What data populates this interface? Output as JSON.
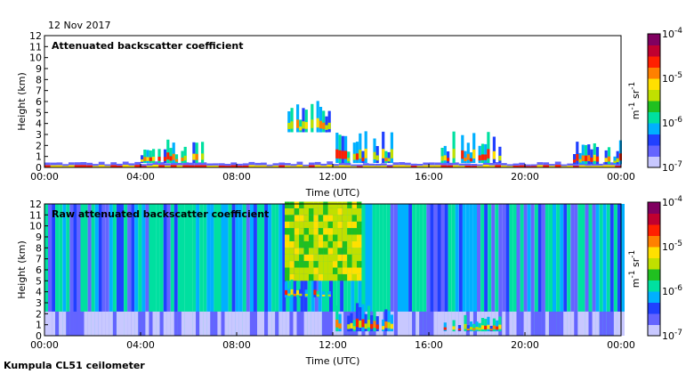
{
  "date": "12 Nov 2017",
  "instrument": "Kumpula CL51 ceilometer",
  "colors": {
    "scale": [
      "#c8c8ff",
      "#6464ff",
      "#2040ff",
      "#00b0ff",
      "#00e0a0",
      "#20c020",
      "#c0e000",
      "#ffe000",
      "#ff8000",
      "#ff2000",
      "#c00030",
      "#800060"
    ]
  },
  "chart_data": [
    {
      "type": "heatmap",
      "title": "Attenuated backscatter coefficient",
      "xlabel": "Time (UTC)",
      "ylabel": "Height (km)",
      "xlim": [
        0,
        24
      ],
      "ylim": [
        0,
        12
      ],
      "x_ticks": [
        "00:00",
        "04:00",
        "08:00",
        "12:00",
        "16:00",
        "20:00",
        "00:00"
      ],
      "y_ticks": [
        "0",
        "1",
        "2",
        "3",
        "4",
        "5",
        "6",
        "7",
        "8",
        "9",
        "10",
        "11",
        "12"
      ],
      "colorbar": {
        "scale": "log",
        "range": [
          1e-07,
          0.0001
        ],
        "tick_labels": [
          {
            "base": "10",
            "exp": "-4"
          },
          {
            "base": "10",
            "exp": "-5"
          },
          {
            "base": "10",
            "exp": "-6"
          },
          {
            "base": "10",
            "exp": "-7"
          }
        ],
        "unit": {
          "m": "m",
          "m_exp": "-1",
          "sr": "sr",
          "sr_exp": "-1"
        }
      },
      "features": [
        {
          "kind": "near-surface aerosol layer",
          "t_start": 0,
          "t_end": 24,
          "top_km": 0.5
        },
        {
          "kind": "scattered clouds",
          "t_start": 4,
          "t_end": 6.8,
          "base_km": 0.4,
          "top_km": 2.6
        },
        {
          "kind": "elevated layer",
          "t_start": 10,
          "t_end": 11.9,
          "base_km": 3.2,
          "top_km": 6.2
        },
        {
          "kind": "low cloud deck",
          "t_start": 12,
          "t_end": 14.5,
          "base_km": 0.4,
          "top_km": 3.6
        },
        {
          "kind": "low clouds",
          "t_start": 16.5,
          "t_end": 19,
          "base_km": 0.4,
          "top_km": 3.4
        },
        {
          "kind": "low clouds",
          "t_start": 22,
          "t_end": 24,
          "base_km": 0.3,
          "top_km": 2.5
        }
      ]
    },
    {
      "type": "heatmap",
      "title": "Raw attenuated backscatter coefficient",
      "xlabel": "Time (UTC)",
      "ylabel": "Height (km)",
      "xlim": [
        0,
        24
      ],
      "ylim": [
        0,
        12
      ],
      "x_ticks": [
        "00:00",
        "04:00",
        "08:00",
        "12:00",
        "16:00",
        "20:00",
        "00:00"
      ],
      "y_ticks": [
        "0",
        "1",
        "2",
        "3",
        "4",
        "5",
        "6",
        "7",
        "8",
        "9",
        "10",
        "11",
        "12"
      ],
      "colorbar": {
        "scale": "log",
        "range": [
          1e-07,
          0.0001
        ],
        "tick_labels": [
          {
            "base": "10",
            "exp": "-4"
          },
          {
            "base": "10",
            "exp": "-5"
          },
          {
            "base": "10",
            "exp": "-6"
          },
          {
            "base": "10",
            "exp": "-7"
          }
        ],
        "unit": {
          "m": "m",
          "m_exp": "-1",
          "sr": "sr",
          "sr_exp": "-1"
        }
      },
      "features": [
        {
          "kind": "background noise",
          "t_start": 0,
          "t_end": 24,
          "base_km": 0,
          "top_km": 12
        },
        {
          "kind": "bright noise region",
          "t_start": 10,
          "t_end": 13,
          "base_km": 5,
          "top_km": 12
        },
        {
          "kind": "elevated layer",
          "t_start": 10,
          "t_end": 11.9,
          "base_km": 3.5,
          "top_km": 5.2
        },
        {
          "kind": "low cloud deck",
          "t_start": 12,
          "t_end": 14.5,
          "base_km": 0.4,
          "top_km": 3.0
        },
        {
          "kind": "low clouds",
          "t_start": 16.5,
          "t_end": 19,
          "base_km": 0.4,
          "top_km": 2.0
        }
      ]
    }
  ]
}
